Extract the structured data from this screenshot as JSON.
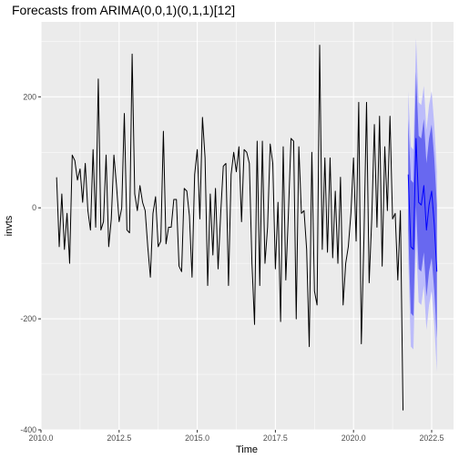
{
  "chart_data": {
    "type": "line",
    "title": "Forecasts from ARIMA(0,0,1)(0,1,1)[12]",
    "xlabel": "Time",
    "ylabel": "invts",
    "xlim": [
      2010.0,
      2023.2
    ],
    "ylim": [
      -400,
      335
    ],
    "x_ticks": [
      {
        "value": 2010.0,
        "label": "2010.0"
      },
      {
        "value": 2012.5,
        "label": "2012.5"
      },
      {
        "value": 2015.0,
        "label": "2015.0"
      },
      {
        "value": 2017.5,
        "label": "2017.5"
      },
      {
        "value": 2020.0,
        "label": "2020.0"
      },
      {
        "value": 2022.5,
        "label": "2022.5"
      }
    ],
    "y_ticks": [
      {
        "value": -400,
        "label": "-400"
      },
      {
        "value": -200,
        "label": "-200"
      },
      {
        "value": 0,
        "label": "0"
      },
      {
        "value": 200,
        "label": "200"
      }
    ],
    "grid": true,
    "colors": {
      "panel": "#ebebeb",
      "grid": "#ffffff",
      "observed": "#000000",
      "forecast": "#0000ff",
      "band80": "#6868f0",
      "band95": "#bcbcfa"
    },
    "observed": {
      "start": 2010.5,
      "frequency": 12,
      "values": [
        55,
        -70,
        25,
        -75,
        -10,
        -100,
        95,
        85,
        50,
        70,
        10,
        80,
        -5,
        -40,
        105,
        -35,
        232,
        -40,
        -25,
        95,
        -70,
        -20,
        95,
        40,
        -25,
        0,
        170,
        -40,
        -45,
        277,
        25,
        -5,
        40,
        10,
        -5,
        -70,
        -125,
        -10,
        20,
        -70,
        -60,
        138,
        -65,
        -35,
        -35,
        15,
        15,
        -105,
        -115,
        35,
        30,
        -15,
        -125,
        60,
        105,
        -20,
        163,
        90,
        -140,
        25,
        -85,
        35,
        -110,
        -10,
        75,
        80,
        -140,
        60,
        100,
        65,
        110,
        -25,
        105,
        100,
        80,
        -100,
        -210,
        120,
        -140,
        120,
        -100,
        -35,
        115,
        80,
        -110,
        10,
        -205,
        110,
        -130,
        -10,
        125,
        120,
        -200,
        110,
        -10,
        -5,
        -75,
        -250,
        100,
        -150,
        -175,
        293,
        -75,
        90,
        -80,
        90,
        -90,
        30,
        -100,
        55,
        -175,
        -100,
        -70,
        -10,
        90,
        -60,
        190,
        -245,
        -55,
        190,
        -135,
        -20,
        150,
        -35,
        165,
        -105,
        110,
        -5,
        165,
        -20,
        -10,
        -130,
        -5,
        -365
      ]
    },
    "forecast": {
      "start": 2021.75,
      "frequency": 12,
      "mean": [
        60,
        -70,
        -75,
        125,
        10,
        5,
        40,
        -40,
        5,
        30,
        -30,
        -115
      ],
      "lo80": [
        -40,
        -190,
        -195,
        5,
        -110,
        -115,
        -80,
        -160,
        -115,
        -90,
        -150,
        -235
      ],
      "hi80": [
        160,
        50,
        45,
        245,
        130,
        125,
        160,
        80,
        125,
        150,
        90,
        5
      ],
      "lo95": [
        -90,
        -250,
        -255,
        -55,
        -170,
        -175,
        -140,
        -220,
        -175,
        -150,
        -210,
        -295
      ],
      "hi95": [
        210,
        110,
        105,
        305,
        190,
        185,
        220,
        140,
        185,
        210,
        150,
        65
      ]
    }
  }
}
